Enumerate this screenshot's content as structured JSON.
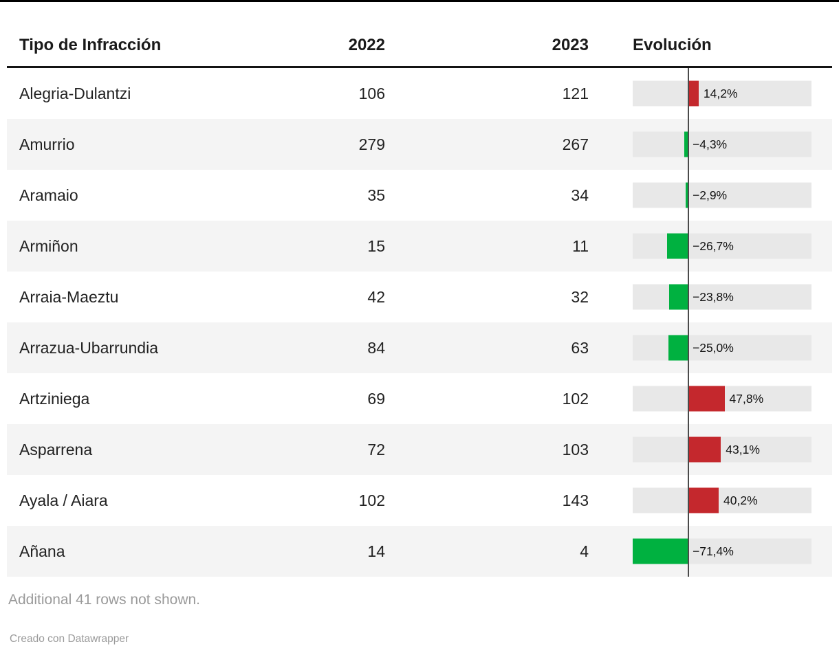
{
  "chart_data": {
    "type": "table",
    "title": "",
    "columns": [
      "Tipo de Infracción",
      "2022",
      "2023",
      "Evolución"
    ],
    "rows": [
      {
        "category": "Alegria-Dulantzi",
        "y2022": 106,
        "y2023": 121,
        "evolution_pct": 14.2,
        "evolution_label": "14,2%"
      },
      {
        "category": "Amurrio",
        "y2022": 279,
        "y2023": 267,
        "evolution_pct": -4.3,
        "evolution_label": "−4,3%"
      },
      {
        "category": "Aramaio",
        "y2022": 35,
        "y2023": 34,
        "evolution_pct": -2.9,
        "evolution_label": "−2,9%"
      },
      {
        "category": "Armiñon",
        "y2022": 15,
        "y2023": 11,
        "evolution_pct": -26.7,
        "evolution_label": "−26,7%"
      },
      {
        "category": "Arraia-Maeztu",
        "y2022": 42,
        "y2023": 32,
        "evolution_pct": -23.8,
        "evolution_label": "−23,8%"
      },
      {
        "category": "Arrazua-Ubarrundia",
        "y2022": 84,
        "y2023": 63,
        "evolution_pct": -25.0,
        "evolution_label": "−25,0%"
      },
      {
        "category": "Artziniega",
        "y2022": 69,
        "y2023": 102,
        "evolution_pct": 47.8,
        "evolution_label": "47,8%"
      },
      {
        "category": "Asparrena",
        "y2022": 72,
        "y2023": 103,
        "evolution_pct": 43.1,
        "evolution_label": "43,1%"
      },
      {
        "category": "Ayala / Aiara",
        "y2022": 102,
        "y2023": 143,
        "evolution_pct": 40.2,
        "evolution_label": "40,2%"
      },
      {
        "category": "Añana",
        "y2022": 14,
        "y2023": 4,
        "evolution_pct": -71.4,
        "evolution_label": "−71,4%"
      }
    ],
    "bar": {
      "positive_color": "#c4282d",
      "negative_color": "#00b140",
      "track_color": "#e8e8e8",
      "axis_max_abs_pct": 71.4,
      "zero_axis": true,
      "legend_position": "none",
      "grid": false
    },
    "note": "Additional 41 rows not shown.",
    "credit": "Creado con Datawrapper"
  }
}
